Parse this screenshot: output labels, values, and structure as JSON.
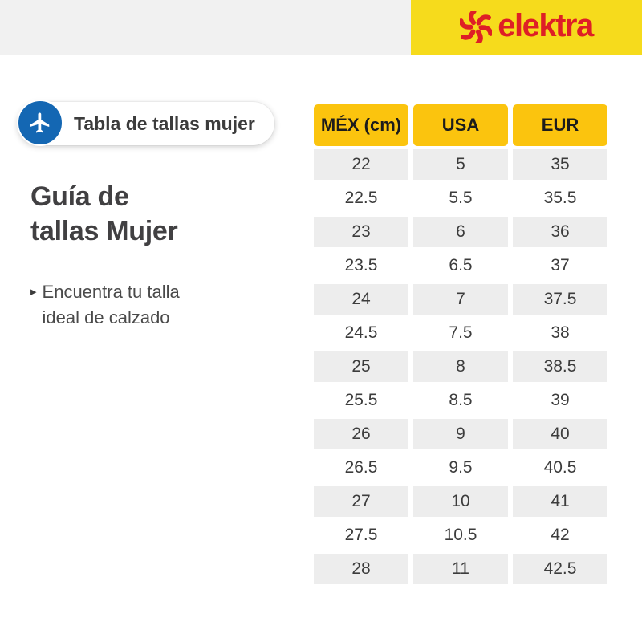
{
  "topbar": {
    "brand": "elektra",
    "brand_color": "#DE1F26",
    "gray_bg": "#F1F1F1",
    "yellow_bg": "#F6DB1C",
    "logo_icon": "pinwheel-icon"
  },
  "badge": {
    "label": "Tabla de tallas mujer",
    "icon": "airplane-icon",
    "icon_bg": "#1467B3"
  },
  "heading": {
    "line1": "Guía de",
    "line2": "tallas Mujer"
  },
  "note": {
    "marker": "▸",
    "line1": "Encuentra tu talla",
    "line2": "ideal de calzado"
  },
  "size_table": {
    "headers": [
      "MÉX (cm)",
      "USA",
      "EUR"
    ],
    "header_bg": "#FBC40E",
    "alt_row_bg": "#EDEDED",
    "rows": [
      [
        "22",
        "5",
        "35"
      ],
      [
        "22.5",
        "5.5",
        "35.5"
      ],
      [
        "23",
        "6",
        "36"
      ],
      [
        "23.5",
        "6.5",
        "37"
      ],
      [
        "24",
        "7",
        "37.5"
      ],
      [
        "24.5",
        "7.5",
        "38"
      ],
      [
        "25",
        "8",
        "38.5"
      ],
      [
        "25.5",
        "8.5",
        "39"
      ],
      [
        "26",
        "9",
        "40"
      ],
      [
        "26.5",
        "9.5",
        "40.5"
      ],
      [
        "27",
        "10",
        "41"
      ],
      [
        "27.5",
        "10.5",
        "42"
      ],
      [
        "28",
        "11",
        "42.5"
      ]
    ]
  }
}
